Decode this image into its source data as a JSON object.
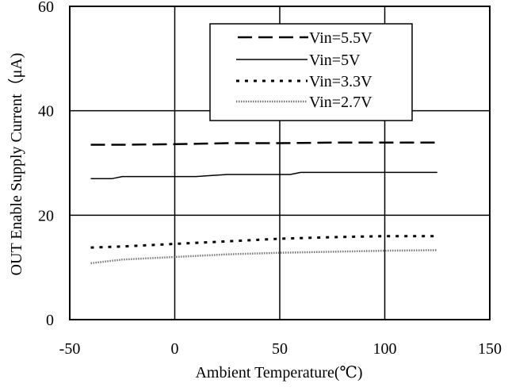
{
  "chart_data": {
    "type": "line",
    "xlabel": "Ambient Temperature(℃)",
    "ylabel": "OUT Enable Supply Current（μA)",
    "xlim": [
      -50,
      150
    ],
    "ylim": [
      0,
      60
    ],
    "xticks": [
      "-50",
      "0",
      "50",
      "100",
      "150"
    ],
    "yticks": [
      "0",
      "20",
      "40",
      "60"
    ],
    "grid": true,
    "legend_position": "top-right",
    "series": [
      {
        "name": "Vin=5.5V",
        "style": "dashed",
        "x": [
          -40,
          -25,
          0,
          25,
          50,
          75,
          100,
          125
        ],
        "y": [
          33.5,
          33.5,
          33.6,
          33.8,
          33.8,
          33.9,
          33.9,
          33.9
        ]
      },
      {
        "name": "Vin=5V",
        "style": "solid",
        "x": [
          -40,
          -30,
          -25,
          0,
          10,
          25,
          55,
          60,
          100,
          125
        ],
        "y": [
          27.0,
          27.0,
          27.4,
          27.4,
          27.4,
          27.8,
          27.8,
          28.2,
          28.2,
          28.2
        ]
      },
      {
        "name": "Vin=3.3V",
        "style": "dotted",
        "x": [
          -40,
          -25,
          0,
          25,
          50,
          75,
          100,
          125
        ],
        "y": [
          13.8,
          14.0,
          14.5,
          15.0,
          15.5,
          15.8,
          16.0,
          16.0
        ]
      },
      {
        "name": "Vin=2.7V",
        "style": "fine-dotted",
        "x": [
          -40,
          -25,
          0,
          25,
          50,
          75,
          100,
          125
        ],
        "y": [
          10.8,
          11.5,
          12.0,
          12.5,
          12.8,
          13.0,
          13.2,
          13.3
        ]
      }
    ]
  }
}
